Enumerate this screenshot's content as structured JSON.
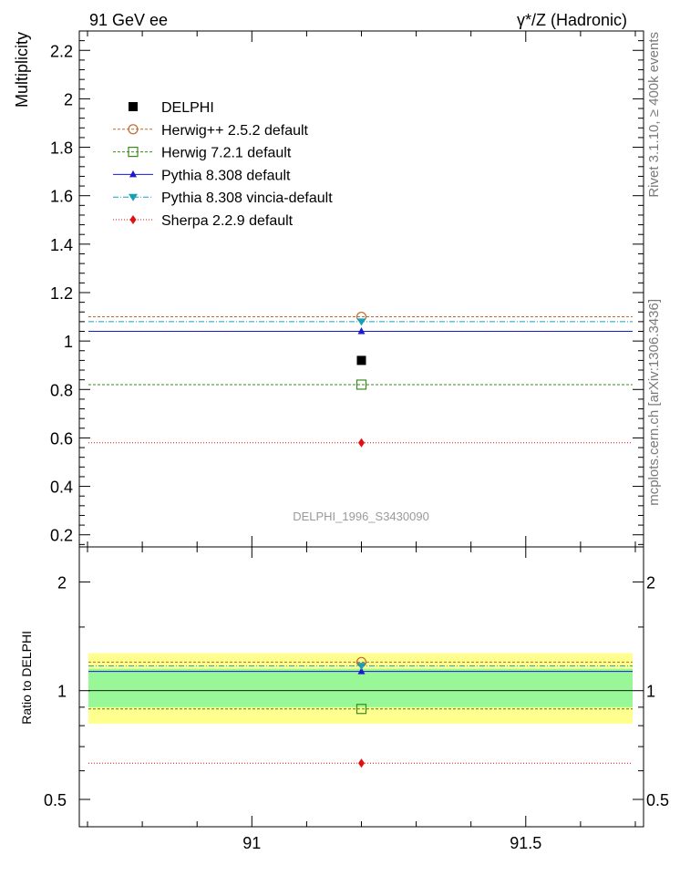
{
  "header": {
    "left_label": "91 GeV ee",
    "right_label": "γ*/Z (Hadronic)"
  },
  "side_labels": {
    "rivet": "Rivet 3.1.10, ≥ 400k events",
    "mcplots": "mcplots.cern.ch [arXiv:1306.3436]"
  },
  "watermark": "DELPHI_1996_S3430090",
  "chart_data": [
    {
      "type": "scatter",
      "panel": "main",
      "ylabel": "Multiplicity",
      "xlabel": "",
      "xlim": [
        90.685,
        91.715
      ],
      "ylim": [
        0.15,
        2.28
      ],
      "yticks": [
        0.2,
        0.4,
        0.6,
        0.8,
        1,
        1.2,
        1.4,
        1.6,
        1.8,
        2,
        2.2
      ],
      "ytick_labels": [
        "0.2",
        "0.4",
        "0.6",
        "0.8",
        "1",
        "1.2",
        "1.4",
        "1.6",
        "1.8",
        "2",
        "2.2"
      ],
      "x_point": 91.2,
      "data": {
        "name": "DELPHI",
        "value": 0.92,
        "color": "#000000",
        "marker": "square-filled"
      },
      "series": [
        {
          "name": "Herwig++ 2.5.2 default",
          "value": 1.1,
          "color": "#c0692a",
          "marker": "circle-open",
          "line": "dashed"
        },
        {
          "name": "Herwig 7.2.1 default",
          "value": 0.82,
          "color": "#3a8a1a",
          "marker": "square-open",
          "line": "dashed"
        },
        {
          "name": "Pythia 8.308 default",
          "value": 1.04,
          "color": "#1a1ad0",
          "marker": "triangle-up",
          "line": "solid"
        },
        {
          "name": "Pythia 8.308 vincia-default",
          "value": 1.08,
          "color": "#16a0b8",
          "marker": "triangle-down",
          "line": "dashdot"
        },
        {
          "name": "Sherpa 2.2.9 default",
          "value": 0.58,
          "color": "#e01010",
          "marker": "diamond",
          "line": "dotted"
        }
      ]
    },
    {
      "type": "scatter",
      "panel": "ratio",
      "ylabel": "Ratio to DELPHI",
      "xlabel": "",
      "log_y": true,
      "xlim": [
        90.685,
        91.715
      ],
      "ylim": [
        0.42,
        2.5
      ],
      "xticks": [
        91,
        91.5
      ],
      "xtick_labels": [
        "91",
        "91.5"
      ],
      "yticks": [
        0.5,
        1,
        2
      ],
      "ytick_labels": [
        "0.5",
        "1",
        "2"
      ],
      "bands": [
        {
          "name": "total uncertainty",
          "low": 0.81,
          "high": 1.27,
          "color": "#ffff90"
        },
        {
          "name": "stat uncertainty",
          "low": 0.9,
          "high": 1.15,
          "color": "#98f898"
        }
      ],
      "ratios": [
        {
          "name": "Herwig++ 2.5.2 default",
          "value": 1.2
        },
        {
          "name": "Herwig 7.2.1 default",
          "value": 0.89
        },
        {
          "name": "Pythia 8.308 default",
          "value": 1.13
        },
        {
          "name": "Pythia 8.308 vincia-default",
          "value": 1.17
        },
        {
          "name": "Sherpa 2.2.9 default",
          "value": 0.63
        }
      ]
    }
  ]
}
